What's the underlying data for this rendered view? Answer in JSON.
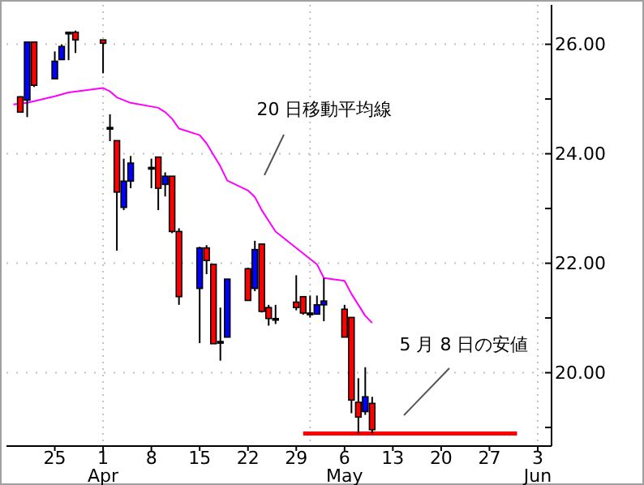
{
  "chart_data": {
    "type": "candlestick",
    "x": [
      "--03-20",
      "--03-21",
      "--03-22",
      "--03-25",
      "--03-26",
      "--03-27",
      "--03-28",
      "--04-01",
      "--04-02",
      "--04-03",
      "--04-04",
      "--04-05",
      "--04-08",
      "--04-09",
      "--04-10",
      "--04-11",
      "--04-12",
      "--04-15",
      "--04-16",
      "--04-17",
      "--04-18",
      "--04-19",
      "--04-22",
      "--04-23",
      "--04-24",
      "--04-25",
      "--04-26",
      "--04-29",
      "--04-30",
      "--05-01",
      "--05-02",
      "--05-03",
      "--05-06",
      "--05-07",
      "--05-08",
      "--05-09",
      "--05-10"
    ],
    "ohlc": [
      [
        25.04,
        25.05,
        24.75,
        24.76
      ],
      [
        24.98,
        26.04,
        24.67,
        26.04
      ],
      [
        26.04,
        26.04,
        25.22,
        25.25
      ],
      [
        25.37,
        25.87,
        25.37,
        25.69
      ],
      [
        25.72,
        26.0,
        25.72,
        25.96
      ],
      [
        26.22,
        26.22,
        25.71,
        26.22
      ],
      [
        26.22,
        26.25,
        25.84,
        26.08
      ],
      [
        26.08,
        26.08,
        25.47,
        26.02
      ],
      [
        24.48,
        24.72,
        24.23,
        24.48
      ],
      [
        24.24,
        24.24,
        22.23,
        23.3
      ],
      [
        23.02,
        23.91,
        22.97,
        23.5
      ],
      [
        23.5,
        23.96,
        23.37,
        23.83
      ],
      [
        23.75,
        23.91,
        23.37,
        23.75
      ],
      [
        23.94,
        23.94,
        22.97,
        23.37
      ],
      [
        23.44,
        23.66,
        23.22,
        23.59
      ],
      [
        23.59,
        23.59,
        22.55,
        22.58
      ],
      [
        22.58,
        22.64,
        21.24,
        21.39
      ],
      [
        21.54,
        22.3,
        20.54,
        22.28
      ],
      [
        22.28,
        22.33,
        21.8,
        22.05
      ],
      [
        21.98,
        21.98,
        20.53,
        20.53
      ],
      [
        20.57,
        21.19,
        20.22,
        20.57
      ],
      [
        20.65,
        21.71,
        20.65,
        21.71
      ],
      [
        21.9,
        21.92,
        21.32,
        21.32
      ],
      [
        21.54,
        22.41,
        21.49,
        22.25
      ],
      [
        22.35,
        22.35,
        21.1,
        21.12
      ],
      [
        21.19,
        21.24,
        20.86,
        20.99
      ],
      [
        20.99,
        21.24,
        20.89,
        20.99
      ],
      [
        21.29,
        21.78,
        21.14,
        21.19
      ],
      [
        21.39,
        21.39,
        21.06,
        21.09
      ],
      [
        21.09,
        21.41,
        21.01,
        21.09
      ],
      [
        21.07,
        21.41,
        21.07,
        21.24
      ],
      [
        21.24,
        21.73,
        20.94,
        21.31
      ],
      [
        21.16,
        21.24,
        20.65,
        20.65
      ],
      [
        21.01,
        21.01,
        19.26,
        19.5
      ],
      [
        19.46,
        19.9,
        18.89,
        19.19
      ],
      [
        19.29,
        20.1,
        19.23,
        19.56
      ],
      [
        19.44,
        19.56,
        18.89,
        18.96
      ]
    ],
    "colors": [
      "#ff0000",
      "#0000ff",
      "#ff0000",
      "#0000ff",
      "#0000ff",
      "#000000",
      "#ff0000",
      "#ff0000",
      "#000000",
      "#ff0000",
      "#0000ff",
      "#0000ff",
      "#000000",
      "#ff0000",
      "#0000ff",
      "#ff0000",
      "#ff0000",
      "#0000ff",
      "#ff0000",
      "#ff0000",
      "#000000",
      "#0000ff",
      "#ff0000",
      "#0000ff",
      "#ff0000",
      "#ff0000",
      "#000000",
      "#ff0000",
      "#ff0000",
      "#000000",
      "#0000ff",
      "#0000ff",
      "#ff0000",
      "#ff0000",
      "#ff0000",
      "#0000ff",
      "#ff0000"
    ],
    "series": [
      {
        "type": "line",
        "color": "#ff00ff",
        "x": [
          "--03-19",
          "--03-21",
          "--03-25",
          "--03-27",
          "--04-01",
          "--04-02",
          "--04-03",
          "--04-05",
          "--04-09",
          "--04-10",
          "--04-11",
          "--04-12",
          "--04-15",
          "--04-16",
          "--04-17",
          "--04-18",
          "--04-19",
          "--04-22",
          "--04-23",
          "--04-24",
          "--04-26",
          "--04-30",
          "--05-02",
          "--05-03",
          "--05-06",
          "--05-07",
          "--05-08",
          "--05-09",
          "--05-10"
        ],
        "values": [
          24.9,
          24.93,
          25.05,
          25.12,
          25.2,
          25.14,
          25.03,
          24.93,
          24.84,
          24.76,
          24.64,
          24.46,
          24.34,
          24.19,
          23.98,
          23.77,
          23.51,
          23.33,
          23.21,
          22.97,
          22.58,
          22.18,
          21.98,
          21.73,
          21.68,
          21.44,
          21.24,
          21.04,
          20.91
        ]
      },
      {
        "type": "line",
        "color": "#ff0000",
        "x": [
          "--04-30",
          "--05-31"
        ],
        "values": [
          18.89,
          18.89
        ]
      }
    ],
    "xlim": [
      "--03-18",
      "--06-05"
    ],
    "xticks": [
      {
        "value": "--03-25",
        "label": "25"
      },
      {
        "value": "--04-01",
        "label": "1\nApr"
      },
      {
        "value": "--04-08",
        "label": "8"
      },
      {
        "value": "--04-15",
        "label": "15"
      },
      {
        "value": "--04-22",
        "label": "22"
      },
      {
        "value": "--04-29",
        "label": "29"
      },
      {
        "value": "--05-06",
        "label": "6\nMay"
      },
      {
        "value": "--05-13",
        "label": "13"
      },
      {
        "value": "--05-20",
        "label": "20"
      },
      {
        "value": "--05-27",
        "label": "27"
      },
      {
        "value": "--06-03",
        "label": "3\nJun"
      }
    ],
    "ylim": [
      18.66,
      26.72
    ],
    "yticks": [
      {
        "value": 19,
        "label": null
      },
      {
        "value": 20,
        "label": "20.00"
      },
      {
        "value": 21,
        "label": null
      },
      {
        "value": 22,
        "label": "22.00"
      },
      {
        "value": 23,
        "label": null
      },
      {
        "value": 24,
        "label": "24.00"
      },
      {
        "value": 25,
        "label": null
      },
      {
        "value": 26,
        "label": "26.00"
      }
    ],
    "grid": "y",
    "ref_lines": [
      {
        "axis": "x",
        "value": "--04-01",
        "color": "#c0c0c0",
        "line_style": "dotted"
      },
      {
        "axis": "x",
        "value": "--05-01",
        "color": "#c0c0c0",
        "line_style": "dotted"
      },
      {
        "axis": "x",
        "value": "--06-03",
        "color": "#c0c0c0",
        "line_style": "dotted"
      }
    ],
    "annotations": [
      "20 日移動平均線",
      "5 月 8 日の安値"
    ]
  }
}
